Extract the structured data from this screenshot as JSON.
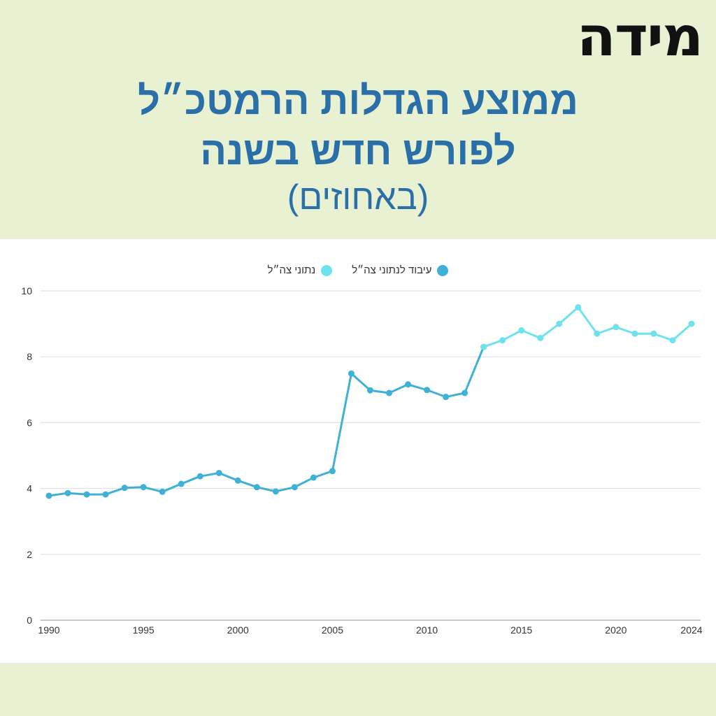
{
  "logo": "מידה",
  "title_line1": "ממוצע הגדלות הרמטכ״ל",
  "title_line2": "לפורש חדש בשנה",
  "title_line3": "(באחוזים)",
  "chart_data": {
    "type": "line",
    "x": [
      1990,
      1991,
      1992,
      1993,
      1994,
      1995,
      1996,
      1997,
      1998,
      1999,
      2000,
      2001,
      2002,
      2003,
      2004,
      2005,
      2006,
      2007,
      2008,
      2009,
      2010,
      2011,
      2012,
      2013,
      2014,
      2015,
      2016,
      2017,
      2018,
      2019,
      2020,
      2021,
      2022,
      2023,
      2024
    ],
    "series": [
      {
        "name": "עיבוד לנתוני צה״ל",
        "color": "#3fb1d6",
        "x": [
          1990,
          1991,
          1992,
          1993,
          1994,
          1995,
          1996,
          1997,
          1998,
          1999,
          2000,
          2001,
          2002,
          2003,
          2004,
          2005,
          2006,
          2007,
          2008,
          2009,
          2010,
          2011,
          2012,
          2013
        ],
        "values": [
          3.78,
          3.86,
          3.82,
          3.82,
          4.02,
          4.04,
          3.9,
          4.14,
          4.37,
          4.47,
          4.24,
          4.04,
          3.91,
          4.04,
          4.33,
          4.53,
          7.49,
          6.98,
          6.9,
          7.16,
          6.99,
          6.78,
          6.9,
          8.3
        ]
      },
      {
        "name": "נתוני צה״ל",
        "color": "#6ee3ec",
        "x": [
          2013,
          2014,
          2015,
          2016,
          2017,
          2018,
          2019,
          2020,
          2021,
          2022,
          2023,
          2024
        ],
        "values": [
          8.3,
          8.5,
          8.8,
          8.57,
          9.0,
          9.5,
          8.7,
          8.9,
          8.7,
          8.7,
          8.5,
          9.0
        ]
      }
    ],
    "x_ticks": [
      1990,
      1995,
      2000,
      2005,
      2010,
      2015,
      2020,
      2024
    ],
    "y_ticks": [
      0,
      2,
      4,
      6,
      8,
      10
    ],
    "xlim": [
      1990,
      2024
    ],
    "ylim": [
      0,
      10
    ],
    "grid": true,
    "legend": "top-center"
  }
}
